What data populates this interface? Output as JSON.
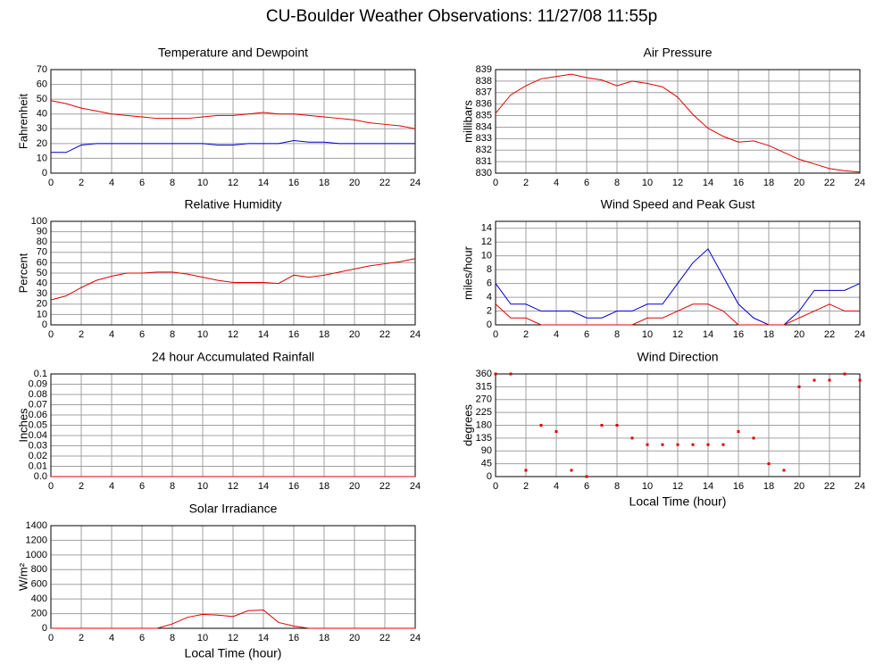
{
  "page_title": "CU-Boulder Weather Observations: 11/27/08 11:55p",
  "chart_data": [
    {
      "type": "line",
      "title": "Temperature and Dewpoint",
      "ylabel": "Fahrenheit",
      "x": [
        0,
        1,
        2,
        3,
        4,
        5,
        6,
        7,
        8,
        9,
        10,
        11,
        12,
        13,
        14,
        15,
        16,
        17,
        18,
        19,
        20,
        21,
        22,
        23,
        24
      ],
      "series": [
        {
          "color": "#e00000",
          "values": [
            49,
            47,
            44,
            42,
            40,
            39,
            38,
            37,
            37,
            37,
            38,
            39,
            39,
            40,
            41,
            40,
            40,
            39,
            38,
            37,
            36,
            34,
            33,
            32,
            30
          ]
        },
        {
          "color": "#0000d0",
          "values": [
            14,
            14,
            19,
            20,
            20,
            20,
            20,
            20,
            20,
            20,
            20,
            19,
            19,
            20,
            20,
            20,
            22,
            21,
            21,
            20,
            20,
            20,
            20,
            20,
            20
          ]
        }
      ],
      "xlim": [
        0,
        24
      ],
      "xticks": [
        0,
        2,
        4,
        6,
        8,
        10,
        12,
        14,
        16,
        18,
        20,
        22,
        24
      ],
      "ylim": [
        0,
        70
      ],
      "yticks": [
        0,
        10,
        20,
        30,
        40,
        50,
        60,
        70
      ],
      "grid": true
    },
    {
      "type": "line",
      "title": "Air Pressure",
      "ylabel": "millibars",
      "x": [
        0,
        1,
        2,
        3,
        4,
        5,
        6,
        7,
        8,
        9,
        10,
        11,
        12,
        13,
        14,
        15,
        16,
        17,
        18,
        19,
        20,
        21,
        22,
        23,
        24
      ],
      "series": [
        {
          "color": "#e00000",
          "values": [
            835.2,
            836.8,
            837.6,
            838.2,
            838.4,
            838.6,
            838.3,
            838.1,
            837.6,
            838.0,
            837.8,
            837.5,
            836.6,
            835.1,
            833.9,
            833.2,
            832.7,
            832.8,
            832.4,
            831.8,
            831.2,
            830.8,
            830.4,
            830.2,
            830.1
          ]
        }
      ],
      "xlim": [
        0,
        24
      ],
      "xticks": [
        0,
        2,
        4,
        6,
        8,
        10,
        12,
        14,
        16,
        18,
        20,
        22,
        24
      ],
      "ylim": [
        830,
        839
      ],
      "yticks": [
        830,
        831,
        832,
        833,
        834,
        835,
        836,
        837,
        838,
        839
      ],
      "grid": true
    },
    {
      "type": "line",
      "title": "Relative Humidity",
      "ylabel": "Percent",
      "x": [
        0,
        1,
        2,
        3,
        4,
        5,
        6,
        7,
        8,
        9,
        10,
        11,
        12,
        13,
        14,
        15,
        16,
        17,
        18,
        19,
        20,
        21,
        22,
        23,
        24
      ],
      "series": [
        {
          "color": "#e00000",
          "values": [
            24,
            28,
            36,
            43,
            47,
            50,
            50,
            51,
            51,
            49,
            46,
            43,
            41,
            41,
            41,
            40,
            48,
            46,
            48,
            51,
            54,
            57,
            59,
            61,
            64
          ]
        }
      ],
      "xlim": [
        0,
        24
      ],
      "xticks": [
        0,
        2,
        4,
        6,
        8,
        10,
        12,
        14,
        16,
        18,
        20,
        22,
        24
      ],
      "ylim": [
        0,
        100
      ],
      "yticks": [
        0,
        10,
        20,
        30,
        40,
        50,
        60,
        70,
        80,
        90,
        100
      ],
      "grid": true
    },
    {
      "type": "line",
      "title": "Wind Speed and Peak Gust",
      "ylabel": "miles/hour",
      "x": [
        0,
        1,
        2,
        3,
        4,
        5,
        6,
        7,
        8,
        9,
        10,
        11,
        12,
        13,
        14,
        15,
        16,
        17,
        18,
        19,
        20,
        21,
        22,
        23,
        24
      ],
      "series": [
        {
          "color": "#0000d0",
          "values": [
            6,
            3,
            3,
            2,
            2,
            2,
            1,
            1,
            2,
            2,
            3,
            3,
            6,
            9,
            11,
            7,
            3,
            1,
            0,
            0,
            2,
            5,
            5,
            5,
            6
          ]
        },
        {
          "color": "#e00000",
          "values": [
            3,
            1,
            1,
            0,
            0,
            0,
            0,
            0,
            0,
            0,
            1,
            1,
            2,
            3,
            3,
            2,
            0,
            0,
            0,
            0,
            1,
            2,
            3,
            2,
            2
          ]
        }
      ],
      "xlim": [
        0,
        24
      ],
      "xticks": [
        0,
        2,
        4,
        6,
        8,
        10,
        12,
        14,
        16,
        18,
        20,
        22,
        24
      ],
      "ylim": [
        0,
        15
      ],
      "yticks": [
        0,
        2,
        4,
        6,
        8,
        10,
        12,
        14
      ],
      "grid": true
    },
    {
      "type": "line",
      "title": "24 hour Accumulated Rainfall",
      "ylabel": "Inches",
      "x": [
        0,
        1,
        2,
        3,
        4,
        5,
        6,
        7,
        8,
        9,
        10,
        11,
        12,
        13,
        14,
        15,
        16,
        17,
        18,
        19,
        20,
        21,
        22,
        23,
        24
      ],
      "series": [
        {
          "color": "#e00000",
          "values": [
            0,
            0,
            0,
            0,
            0,
            0,
            0,
            0,
            0,
            0,
            0,
            0,
            0,
            0,
            0,
            0,
            0,
            0,
            0,
            0,
            0,
            0,
            0,
            0,
            0
          ]
        }
      ],
      "xlim": [
        0,
        24
      ],
      "xticks": [
        0,
        2,
        4,
        6,
        8,
        10,
        12,
        14,
        16,
        18,
        20,
        22,
        24
      ],
      "ylim": [
        0,
        0.1
      ],
      "yticks": [
        {
          "value": 0,
          "label": "0.0"
        },
        0.01,
        0.02,
        0.03,
        0.04,
        0.05,
        0.06,
        0.07,
        0.08,
        0.09,
        0.1
      ],
      "grid": true
    },
    {
      "type": "scatter",
      "title": "Wind Direction",
      "ylabel": "degrees",
      "xlabel": "Local Time (hour)",
      "x": [
        0,
        1,
        2,
        3,
        4,
        5,
        6,
        7,
        8,
        9,
        10,
        11,
        12,
        13,
        14,
        15,
        16,
        17,
        18,
        19,
        20,
        21,
        22,
        23,
        24
      ],
      "series": [
        {
          "color": "#e00000",
          "values": [
            360,
            360,
            22,
            180,
            158,
            22,
            0,
            180,
            180,
            135,
            112,
            112,
            112,
            112,
            112,
            112,
            158,
            135,
            45,
            22,
            315,
            338,
            338,
            360,
            338
          ]
        }
      ],
      "xlim": [
        0,
        24
      ],
      "xticks": [
        0,
        2,
        4,
        6,
        8,
        10,
        12,
        14,
        16,
        18,
        20,
        22,
        24
      ],
      "ylim": [
        0,
        360
      ],
      "yticks": [
        0,
        45,
        90,
        135,
        180,
        225,
        270,
        315,
        360
      ],
      "grid": true
    },
    {
      "type": "line",
      "title": "Solar Irradiance",
      "ylabel": "W/m²",
      "xlabel": "Local Time (hour)",
      "x": [
        0,
        1,
        2,
        3,
        4,
        5,
        6,
        7,
        8,
        9,
        10,
        11,
        12,
        13,
        14,
        15,
        16,
        17,
        18,
        19,
        20,
        21,
        22,
        23,
        24
      ],
      "series": [
        {
          "color": "#e00000",
          "values": [
            0,
            0,
            0,
            0,
            0,
            0,
            0,
            0,
            60,
            150,
            190,
            180,
            160,
            240,
            250,
            80,
            30,
            0,
            0,
            0,
            0,
            0,
            0,
            0,
            0
          ]
        }
      ],
      "xlim": [
        0,
        24
      ],
      "xticks": [
        0,
        2,
        4,
        6,
        8,
        10,
        12,
        14,
        16,
        18,
        20,
        22,
        24
      ],
      "ylim": [
        0,
        1400
      ],
      "yticks": [
        0,
        200,
        400,
        600,
        800,
        1000,
        1200,
        1400
      ],
      "grid": true
    }
  ]
}
